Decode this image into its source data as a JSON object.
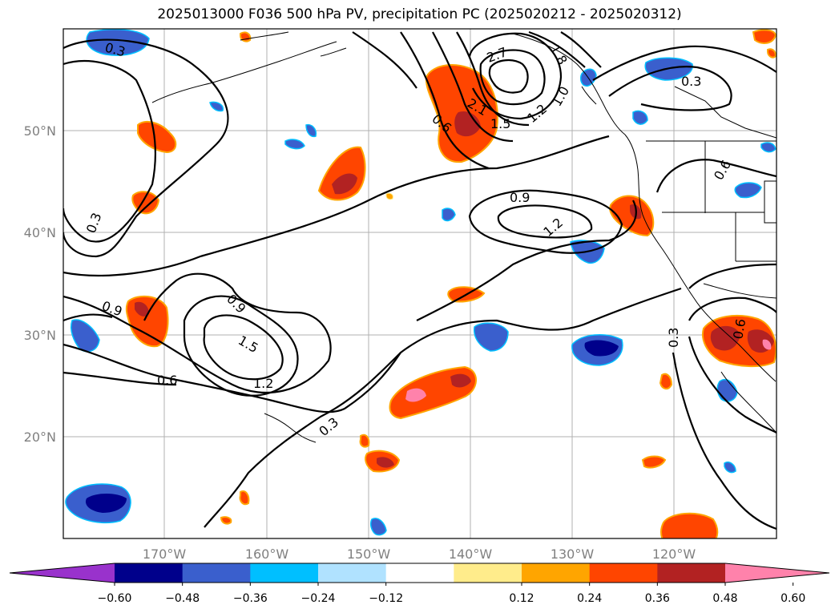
{
  "title": "2025013000 F036 500 hPa PV, precipitation PC (2025020212 - 2025020312)",
  "lat_labels": [
    "50°N",
    "40°N",
    "30°N",
    "20°N"
  ],
  "lon_labels": [
    "170°W",
    "160°W",
    "150°W",
    "140°W",
    "130°W",
    "120°W"
  ],
  "contour_labels": {
    "a": "0.3",
    "b": "0.3",
    "c": "0.3",
    "d": "0.3",
    "e": "0.3",
    "f": "0.6",
    "g": "0.6",
    "h": "0.6",
    "i": "0.6",
    "j": "0.9",
    "k": "0.9",
    "l": "0.9",
    "m": "1.2",
    "n": "1.2",
    "o": "1.2",
    "p": "1.5",
    "q": "1.5",
    "r": "1.8",
    "s": "2.1",
    "t": "2.7",
    "u": "1.0"
  },
  "colorbar": {
    "ticks": [
      "−0.60",
      "−0.48",
      "−0.36",
      "−0.24",
      "−0.12",
      "0.12",
      "0.24",
      "0.36",
      "0.48",
      "0.60"
    ],
    "colors": [
      "#9932cc",
      "#00008b",
      "#3a5fcd",
      "#00bfff",
      "#b0e2ff",
      "#ffffff",
      "#ffec8b",
      "#ffa500",
      "#ff4500",
      "#b22222",
      "#ff82ab"
    ]
  }
}
